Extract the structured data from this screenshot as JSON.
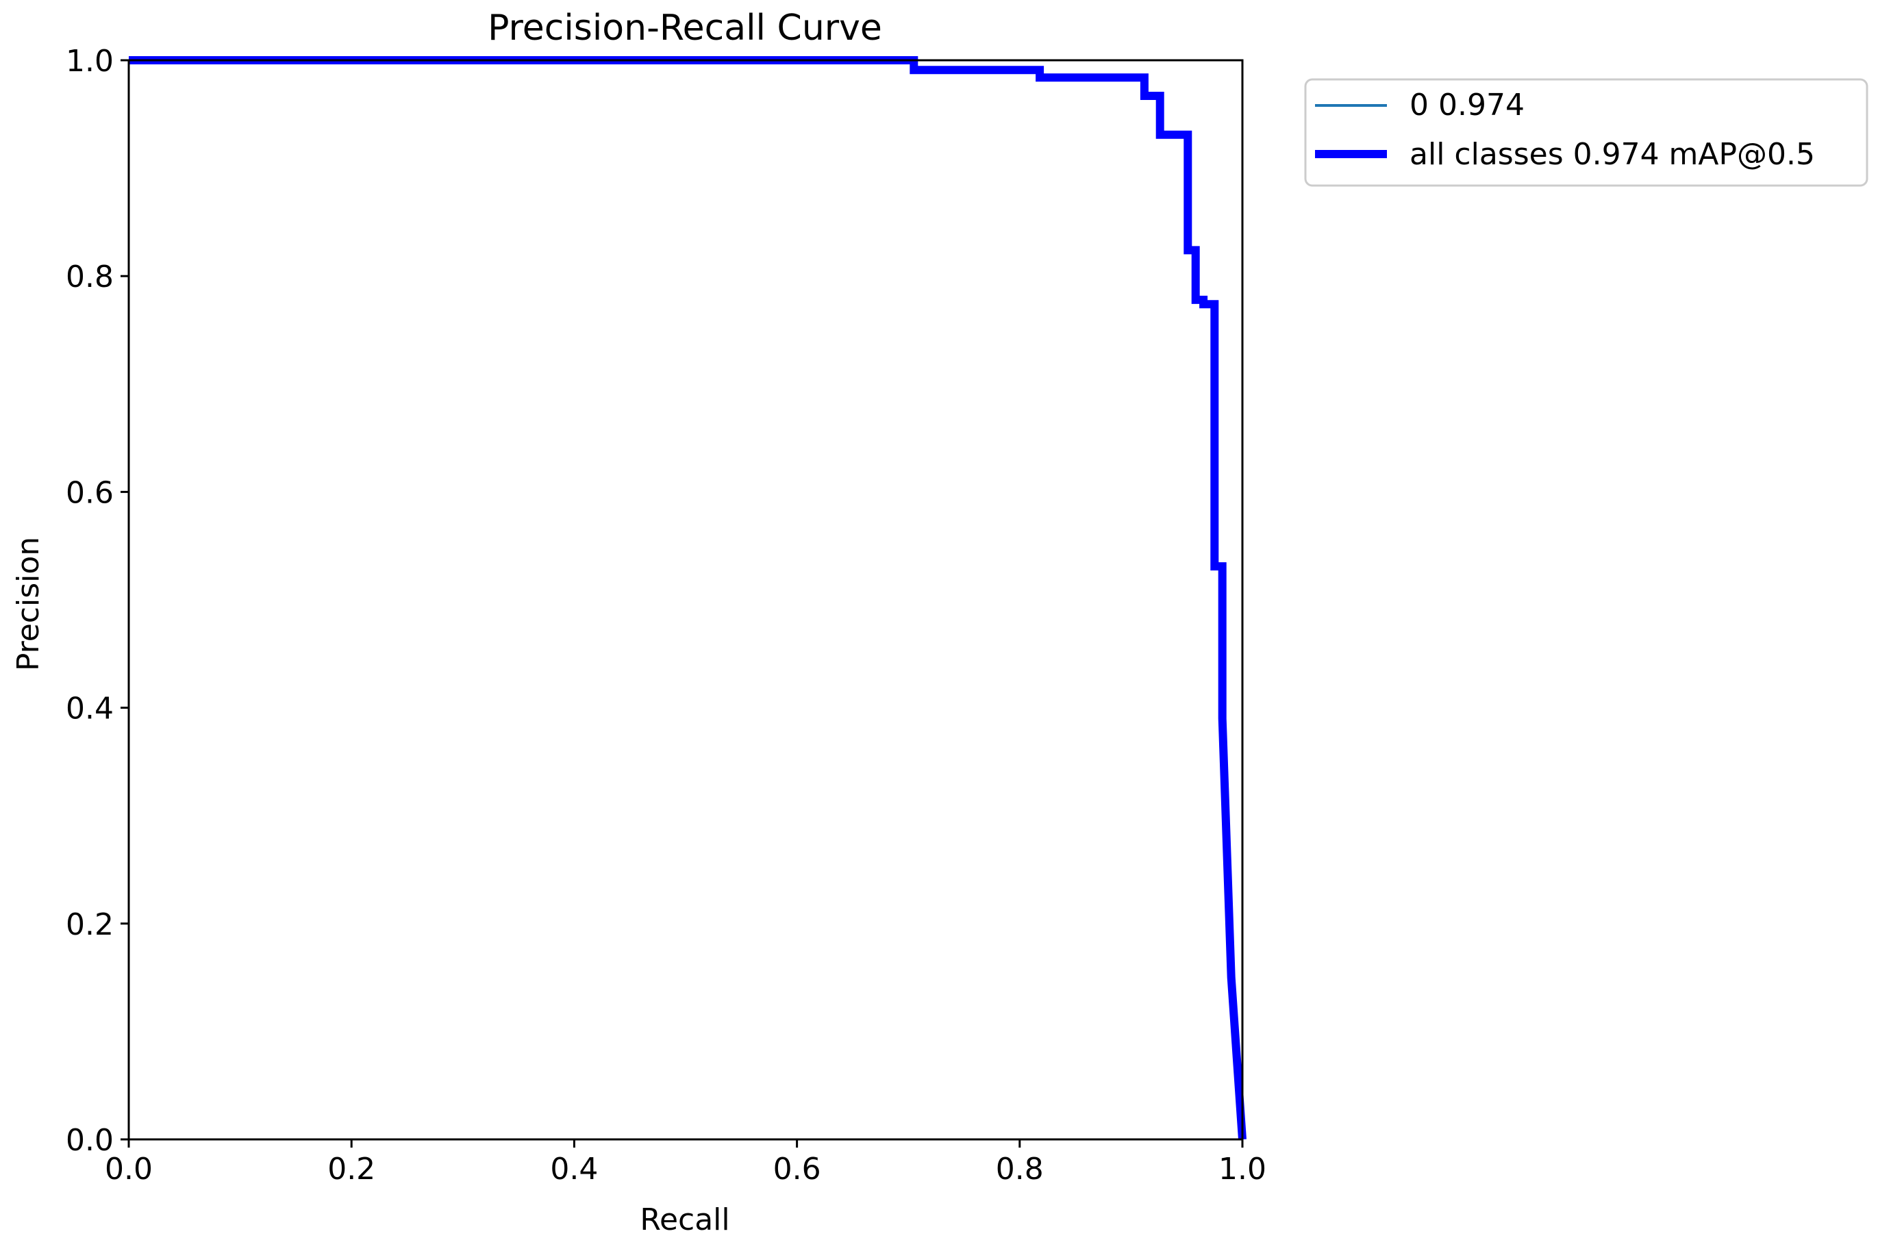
{
  "chart_data": {
    "type": "line",
    "title": "Precision-Recall Curve",
    "xlabel": "Recall",
    "ylabel": "Precision",
    "xlim": [
      0,
      1
    ],
    "ylim": [
      0,
      1
    ],
    "x_ticks": [
      0.0,
      0.2,
      0.4,
      0.6,
      0.8,
      1.0
    ],
    "x_tick_labels": [
      "0.0",
      "0.2",
      "0.4",
      "0.6",
      "0.8",
      "1.0"
    ],
    "y_ticks": [
      0.0,
      0.2,
      0.4,
      0.6,
      0.8,
      1.0
    ],
    "y_tick_labels": [
      "0.0",
      "0.2",
      "0.4",
      "0.6",
      "0.8",
      "1.0"
    ],
    "grid": false,
    "legend_placement": "outside-top-right",
    "series": [
      {
        "name": "0 0.974",
        "color": "#1f77b4",
        "style": "thin",
        "x": [
          0.0,
          0.705,
          0.705,
          0.818,
          0.818,
          0.912,
          0.912,
          0.926,
          0.926,
          0.951,
          0.951,
          0.958,
          0.958,
          0.965,
          0.965,
          0.975,
          0.975,
          0.982,
          0.982,
          0.985,
          0.99,
          1.0
        ],
        "y": [
          1.0,
          1.0,
          0.991,
          0.991,
          0.984,
          0.984,
          0.967,
          0.967,
          0.931,
          0.931,
          0.824,
          0.824,
          0.778,
          0.778,
          0.774,
          0.774,
          0.531,
          0.531,
          0.39,
          0.3,
          0.15,
          0.0
        ]
      },
      {
        "name": "all classes 0.974 mAP@0.5",
        "color": "#0000ff",
        "style": "thick",
        "x": [
          0.0,
          0.705,
          0.705,
          0.818,
          0.818,
          0.912,
          0.912,
          0.926,
          0.926,
          0.951,
          0.951,
          0.958,
          0.958,
          0.965,
          0.965,
          0.975,
          0.975,
          0.982,
          0.982,
          0.985,
          0.99,
          1.0
        ],
        "y": [
          1.0,
          1.0,
          0.991,
          0.991,
          0.984,
          0.984,
          0.967,
          0.967,
          0.931,
          0.931,
          0.824,
          0.824,
          0.778,
          0.778,
          0.774,
          0.774,
          0.531,
          0.531,
          0.39,
          0.3,
          0.15,
          0.0
        ]
      }
    ]
  }
}
